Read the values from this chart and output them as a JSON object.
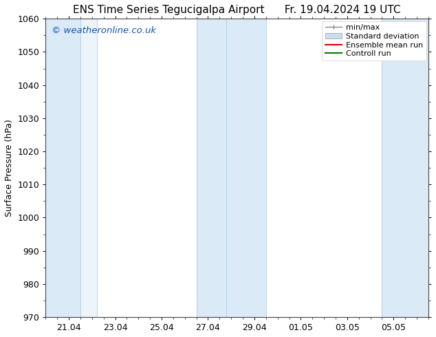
{
  "title_left": "ENS Time Series Tegucigalpa Airport",
  "title_right": "Fr. 19.04.2024 19 UTC",
  "ylabel": "Surface Pressure (hPa)",
  "ylim": [
    970,
    1060
  ],
  "yticks": [
    970,
    980,
    990,
    1000,
    1010,
    1020,
    1030,
    1040,
    1050,
    1060
  ],
  "xlim_start": 0.0,
  "xlim_end": 16.5,
  "xtick_labels": [
    "21.04",
    "23.04",
    "25.04",
    "27.04",
    "29.04",
    "01.05",
    "03.05",
    "05.05"
  ],
  "xtick_positions": [
    1.0,
    3.0,
    5.0,
    7.0,
    9.0,
    11.0,
    13.0,
    15.0
  ],
  "background_color": "#ffffff",
  "plot_bg_color": "#ffffff",
  "shaded_bands": [
    {
      "x_start": -0.1,
      "x_end": 1.5,
      "color": "#daeaf7",
      "alpha": 1.0
    },
    {
      "x_start": 1.5,
      "x_end": 2.2,
      "color": "#edf5fb",
      "alpha": 1.0
    },
    {
      "x_start": 6.5,
      "x_end": 7.8,
      "color": "#daeaf7",
      "alpha": 1.0
    },
    {
      "x_start": 7.8,
      "x_end": 9.5,
      "color": "#daeaf7",
      "alpha": 1.0
    },
    {
      "x_start": 14.5,
      "x_end": 16.6,
      "color": "#daeaf7",
      "alpha": 1.0
    }
  ],
  "legend_labels": [
    "min/max",
    "Standard deviation",
    "Ensemble mean run",
    "Controll run"
  ],
  "legend_colors_line": [
    "#888888",
    "#bbccdd",
    "#dd0000",
    "#007700"
  ],
  "legend_patch_color": "#ccdded",
  "watermark_text": "© weatheronline.co.uk",
  "watermark_color": "#1155aa",
  "title_fontsize": 11,
  "axis_label_fontsize": 9,
  "tick_fontsize": 9,
  "legend_fontsize": 8,
  "spine_color": "#444444"
}
